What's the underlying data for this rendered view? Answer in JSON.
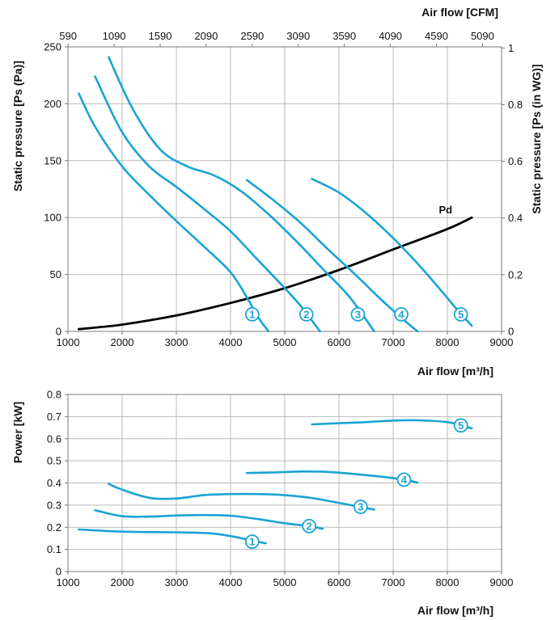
{
  "chart_data": [
    {
      "type": "line",
      "xlabel": "Air flow [m³/h]",
      "x2label": "Air flow [CFM]",
      "ylabel": "Static pressure [Ps (Pa)]",
      "y2label": "Static pressure [Ps (in WG)]",
      "xlim": [
        1000,
        9000
      ],
      "ylim": [
        0,
        250
      ],
      "x_ticks": [
        "1000",
        "2000",
        "3000",
        "4000",
        "5000",
        "6000",
        "7000",
        "8000",
        "9000"
      ],
      "y_ticks": [
        "0",
        "50",
        "100",
        "150",
        "200",
        "250"
      ],
      "x2_ticks": [
        {
          "value": 590,
          "label": "590"
        },
        {
          "value": 1090,
          "label": "1090"
        },
        {
          "value": 1590,
          "label": "1590"
        },
        {
          "value": 2090,
          "label": "2090"
        },
        {
          "value": 2590,
          "label": "2590"
        },
        {
          "value": 3090,
          "label": "3090"
        },
        {
          "value": 3590,
          "label": "3590"
        },
        {
          "value": 4090,
          "label": "4090"
        },
        {
          "value": 4590,
          "label": "4590"
        },
        {
          "value": 5090,
          "label": "5090"
        }
      ],
      "y2_ticks": [
        {
          "value": 0,
          "label": "0"
        },
        {
          "value": 0.2,
          "label": "0.2"
        },
        {
          "value": 0.4,
          "label": "0.4"
        },
        {
          "value": 0.6,
          "label": "0.6"
        },
        {
          "value": 0.8,
          "label": "0.8"
        },
        {
          "value": 1,
          "label": "1"
        }
      ],
      "grid": true,
      "series_color": "#1aa3d4",
      "series": [
        {
          "name": "1",
          "marker_at": [
            4400,
            15
          ],
          "points": [
            [
              1200,
              209
            ],
            [
              1500,
              180
            ],
            [
              2000,
              145
            ],
            [
              2500,
              120
            ],
            [
              3000,
              97
            ],
            [
              3500,
              75
            ],
            [
              4000,
              52
            ],
            [
              4300,
              30
            ],
            [
              4500,
              13
            ],
            [
              4700,
              0
            ]
          ]
        },
        {
          "name": "2",
          "marker_at": [
            5400,
            15
          ],
          "points": [
            [
              1500,
              224
            ],
            [
              2000,
              175
            ],
            [
              2500,
              145
            ],
            [
              3000,
              127
            ],
            [
              3500,
              108
            ],
            [
              4000,
              88
            ],
            [
              4500,
              63
            ],
            [
              5000,
              38
            ],
            [
              5300,
              22
            ],
            [
              5650,
              0
            ]
          ]
        },
        {
          "name": "3",
          "marker_at": [
            6350,
            15
          ],
          "points": [
            [
              1750,
              241
            ],
            [
              2200,
              195
            ],
            [
              2700,
              160
            ],
            [
              3200,
              145
            ],
            [
              3700,
              137
            ],
            [
              4200,
              123
            ],
            [
              4700,
              103
            ],
            [
              5200,
              80
            ],
            [
              5700,
              55
            ],
            [
              6200,
              30
            ],
            [
              6650,
              0
            ]
          ]
        },
        {
          "name": "4",
          "marker_at": [
            7150,
            15
          ],
          "points": [
            [
              4300,
              133
            ],
            [
              4800,
              115
            ],
            [
              5300,
              95
            ],
            [
              5800,
              72
            ],
            [
              6300,
              50
            ],
            [
              6800,
              27
            ],
            [
              7150,
              12
            ],
            [
              7450,
              0
            ]
          ]
        },
        {
          "name": "5",
          "marker_at": [
            8250,
            15
          ],
          "points": [
            [
              5500,
              134
            ],
            [
              6000,
              122
            ],
            [
              6500,
              104
            ],
            [
              7000,
              82
            ],
            [
              7500,
              57
            ],
            [
              7900,
              35
            ],
            [
              8200,
              18
            ],
            [
              8450,
              5
            ]
          ]
        }
      ],
      "pd_curve": {
        "name": "Pd",
        "color": "#000000",
        "points": [
          [
            1200,
            2
          ],
          [
            2000,
            6
          ],
          [
            3000,
            14
          ],
          [
            4000,
            25
          ],
          [
            5000,
            38
          ],
          [
            6000,
            54
          ],
          [
            7000,
            72
          ],
          [
            8000,
            90
          ],
          [
            8450,
            100
          ]
        ]
      }
    },
    {
      "type": "line",
      "xlabel": "Air flow [m³/h]",
      "ylabel": "Power [kW]",
      "xlim": [
        1000,
        9000
      ],
      "ylim": [
        0,
        0.8
      ],
      "x_ticks": [
        "1000",
        "2000",
        "3000",
        "4000",
        "5000",
        "6000",
        "7000",
        "8000",
        "9000"
      ],
      "y_ticks": [
        "0",
        "0.1",
        "0.2",
        "0.3",
        "0.4",
        "0.5",
        "0.6",
        "0.7",
        "0.8"
      ],
      "grid": true,
      "series_color": "#1aa3d4",
      "series": [
        {
          "name": "1",
          "marker_at": [
            4400,
            0.135
          ],
          "points": [
            [
              1200,
              0.19
            ],
            [
              2000,
              0.18
            ],
            [
              3000,
              0.177
            ],
            [
              3600,
              0.173
            ],
            [
              4000,
              0.16
            ],
            [
              4400,
              0.14
            ],
            [
              4650,
              0.127
            ]
          ]
        },
        {
          "name": "2",
          "marker_at": [
            5450,
            0.205
          ],
          "points": [
            [
              1500,
              0.277
            ],
            [
              2000,
              0.25
            ],
            [
              2500,
              0.248
            ],
            [
              3000,
              0.253
            ],
            [
              3500,
              0.255
            ],
            [
              4000,
              0.252
            ],
            [
              4500,
              0.237
            ],
            [
              5000,
              0.218
            ],
            [
              5450,
              0.205
            ],
            [
              5700,
              0.193
            ]
          ]
        },
        {
          "name": "3",
          "marker_at": [
            6400,
            0.292
          ],
          "points": [
            [
              1750,
              0.396
            ],
            [
              2000,
              0.37
            ],
            [
              2500,
              0.333
            ],
            [
              3000,
              0.33
            ],
            [
              3500,
              0.345
            ],
            [
              4000,
              0.35
            ],
            [
              4500,
              0.35
            ],
            [
              5000,
              0.345
            ],
            [
              5500,
              0.332
            ],
            [
              6000,
              0.31
            ],
            [
              6400,
              0.292
            ],
            [
              6650,
              0.28
            ]
          ]
        },
        {
          "name": "4",
          "marker_at": [
            7200,
            0.415
          ],
          "points": [
            [
              4300,
              0.445
            ],
            [
              4800,
              0.448
            ],
            [
              5300,
              0.452
            ],
            [
              5800,
              0.45
            ],
            [
              6300,
              0.44
            ],
            [
              6800,
              0.428
            ],
            [
              7200,
              0.415
            ],
            [
              7450,
              0.402
            ]
          ]
        },
        {
          "name": "5",
          "marker_at": [
            8250,
            0.66
          ],
          "points": [
            [
              5500,
              0.665
            ],
            [
              6000,
              0.67
            ],
            [
              6500,
              0.675
            ],
            [
              7000,
              0.682
            ],
            [
              7500,
              0.683
            ],
            [
              8000,
              0.675
            ],
            [
              8250,
              0.66
            ],
            [
              8450,
              0.647
            ]
          ]
        }
      ]
    }
  ]
}
